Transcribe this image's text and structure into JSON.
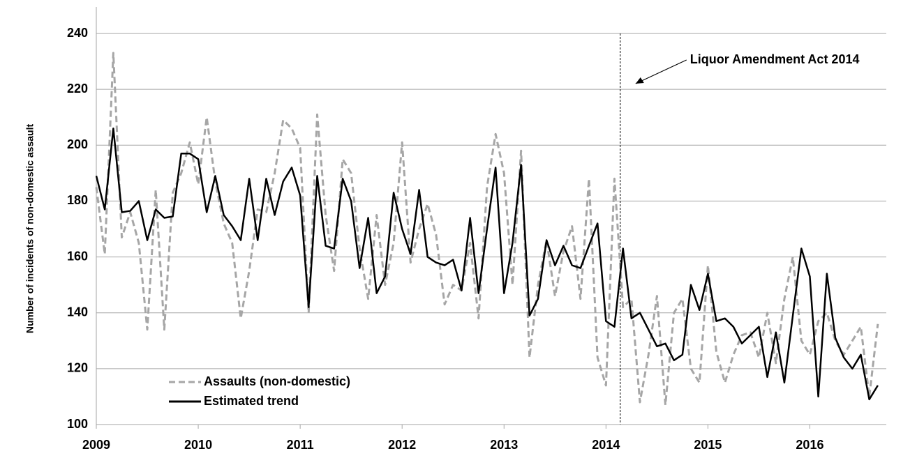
{
  "chart_data": {
    "type": "line",
    "y_label": "Number of incidents of non-domestic assault",
    "x": [
      2009,
      2009.083,
      2009.167,
      2009.25,
      2009.333,
      2009.417,
      2009.5,
      2009.583,
      2009.667,
      2009.75,
      2009.833,
      2009.917,
      2010,
      2010.083,
      2010.167,
      2010.25,
      2010.333,
      2010.417,
      2010.5,
      2010.583,
      2010.667,
      2010.75,
      2010.833,
      2010.917,
      2011,
      2011.083,
      2011.167,
      2011.25,
      2011.333,
      2011.417,
      2011.5,
      2011.583,
      2011.667,
      2011.75,
      2011.833,
      2011.917,
      2012,
      2012.083,
      2012.167,
      2012.25,
      2012.333,
      2012.417,
      2012.5,
      2012.583,
      2012.667,
      2012.75,
      2012.833,
      2012.917,
      2013,
      2013.083,
      2013.167,
      2013.25,
      2013.333,
      2013.417,
      2013.5,
      2013.583,
      2013.667,
      2013.75,
      2013.833,
      2013.917,
      2014,
      2014.083,
      2014.167,
      2014.25,
      2014.333,
      2014.417,
      2014.5,
      2014.583,
      2014.667,
      2014.75,
      2014.833,
      2014.917,
      2015,
      2015.083,
      2015.167,
      2015.25,
      2015.333,
      2015.417,
      2015.5,
      2015.583,
      2015.667,
      2015.75,
      2015.833,
      2015.917,
      2016,
      2016.083,
      2016.167,
      2016.25,
      2016.333,
      2016.417,
      2016.5,
      2016.583,
      2016.667
    ],
    "series": [
      {
        "name": "Assaults (non-domestic)",
        "color": "#a6a6a6",
        "dash": true,
        "values": [
          185,
          161,
          233,
          167,
          176,
          165,
          134,
          184,
          134,
          183,
          190,
          201,
          186,
          210,
          187,
          172,
          165,
          138,
          155,
          177,
          176,
          190,
          209,
          206,
          199,
          140,
          211,
          175,
          155,
          195,
          190,
          163,
          145,
          175,
          150,
          165,
          201,
          158,
          170,
          179,
          168,
          143,
          150,
          148,
          165,
          138,
          185,
          204,
          190,
          150,
          198,
          124,
          150,
          166,
          146,
          162,
          171,
          145,
          188,
          124,
          114,
          188,
          142,
          145,
          108,
          125,
          146,
          107,
          140,
          145,
          120,
          115,
          157,
          126,
          115,
          125,
          132,
          133,
          124,
          140,
          122,
          145,
          160,
          130,
          125,
          137,
          140,
          130,
          125,
          130,
          135,
          110,
          136
        ]
      },
      {
        "name": "Estimated trend",
        "color": "#000000",
        "dash": false,
        "values": [
          189,
          177,
          206,
          176,
          176.5,
          180,
          166,
          177,
          174,
          174.5,
          197,
          197,
          195,
          176,
          189,
          175,
          171,
          166,
          188,
          166,
          188,
          175,
          187,
          192,
          182,
          142,
          189,
          164,
          163,
          188,
          180,
          156,
          174,
          147,
          153,
          183,
          170,
          161,
          184,
          160,
          158,
          157,
          159,
          148,
          174,
          147,
          170,
          192,
          147,
          165,
          193,
          139,
          145,
          166,
          157,
          164,
          157,
          156,
          164,
          172,
          137,
          135,
          163,
          138,
          140,
          134,
          128,
          129,
          123,
          125,
          150,
          141,
          154,
          137,
          138,
          135,
          129,
          132,
          135,
          117,
          133,
          115,
          139,
          163,
          153,
          110,
          154,
          131,
          124,
          120,
          125,
          109,
          114
        ]
      }
    ],
    "annotations": [
      {
        "text": "Liquor Amendment Act 2014",
        "x": 2014.14
      }
    ],
    "xlim": [
      2009,
      2016.75
    ],
    "xticks": [
      2009,
      2010,
      2011,
      2012,
      2013,
      2014,
      2015,
      2016
    ],
    "ylim": [
      100,
      240
    ],
    "yticks": [
      100,
      120,
      140,
      160,
      180,
      200,
      220,
      240
    ],
    "grid": true,
    "legend": "lower-left"
  }
}
